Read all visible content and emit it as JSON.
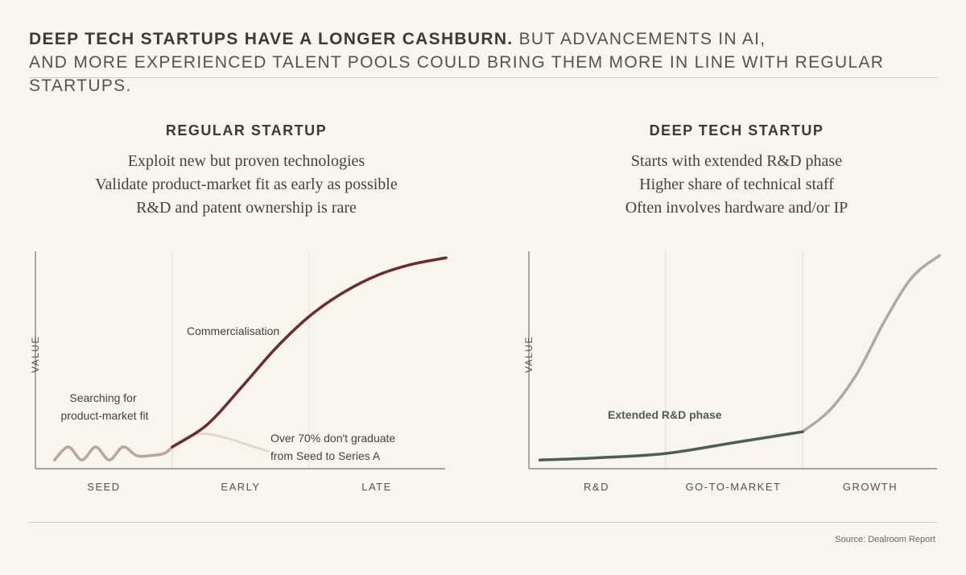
{
  "headline": {
    "bold": "DEEP TECH STARTUPS HAVE A LONGER CASHBURN.",
    "line1_rest": "BUT ADVANCEMENTS IN AI,",
    "line2": "AND MORE EXPERIENCED TALENT POOLS COULD BRING THEM MORE IN LINE WITH REGULAR STARTUPS."
  },
  "source": "Source: Dealroom Report",
  "colors": {
    "background": "#f8f5ec",
    "regular_curve": "#6a2c2c",
    "regular_wiggle": "#b7a89c",
    "failed_path": "#e2d8cc",
    "deeptech_curve": "#4e5e4f",
    "deeptech_growth": "#aaaaa6",
    "axis": "#8a867e",
    "divider": "#e3dfd4"
  },
  "chart_data": [
    {
      "type": "line",
      "title": "REGULAR STARTUP",
      "description": [
        "Exploit new but proven technologies",
        "Validate product-market fit as early as possible",
        "R&D and patent ownership is rare"
      ],
      "ylabel": "VALUE",
      "xlabel": "",
      "stages": [
        "SEED",
        "EARLY",
        "LATE"
      ],
      "x_range": [
        0,
        3
      ],
      "y_range": [
        0,
        100
      ],
      "series": [
        {
          "name": "Searching for product-market fit",
          "style": "wiggle",
          "x": [
            0.14,
            0.24,
            0.34,
            0.44,
            0.54,
            0.64,
            0.74,
            0.84,
            0.94,
            1.0
          ],
          "y": [
            4,
            10,
            4,
            10,
            4,
            10,
            6,
            6,
            7,
            10
          ]
        },
        {
          "name": "Commercialisation",
          "style": "s-curve",
          "x": [
            1.0,
            1.25,
            1.5,
            1.75,
            2.0,
            2.25,
            2.5,
            2.75,
            3.0
          ],
          "y": [
            10,
            20,
            37,
            55,
            70,
            81,
            89,
            94,
            97
          ]
        },
        {
          "name": "Over 70% don't graduate from Seed to Series A",
          "style": "fading",
          "x": [
            1.0,
            1.12,
            1.25,
            1.4,
            1.55,
            1.7
          ],
          "y": [
            10,
            15,
            16,
            14,
            11,
            8
          ]
        }
      ],
      "annotations": {
        "seed": [
          "Searching for",
          "product-market fit"
        ],
        "commercialisation": "Commercialisation",
        "failure": [
          "Over 70% don't graduate",
          "from Seed to Series A"
        ]
      }
    },
    {
      "type": "line",
      "title": "DEEP TECH STARTUP",
      "description": [
        "Starts with extended R&D phase",
        "Higher share of technical staff",
        "Often involves hardware and/or IP"
      ],
      "ylabel": "VALUE",
      "xlabel": "",
      "stages": [
        "R&D",
        "GO-TO-MARKET",
        "GROWTH"
      ],
      "x_range": [
        0,
        3
      ],
      "y_range": [
        0,
        100
      ],
      "series": [
        {
          "name": "Extended R&D phase",
          "style": "solid",
          "x": [
            0.08,
            0.5,
            1.0,
            1.5,
            2.0
          ],
          "y": [
            4,
            5,
            7,
            12,
            17
          ]
        },
        {
          "name": "Growth",
          "style": "light",
          "x": [
            2.0,
            2.2,
            2.4,
            2.6,
            2.8,
            3.0
          ],
          "y": [
            17,
            27,
            44,
            68,
            88,
            98
          ]
        }
      ],
      "annotations": {
        "rd_phase": "Extended R&D phase"
      }
    }
  ]
}
